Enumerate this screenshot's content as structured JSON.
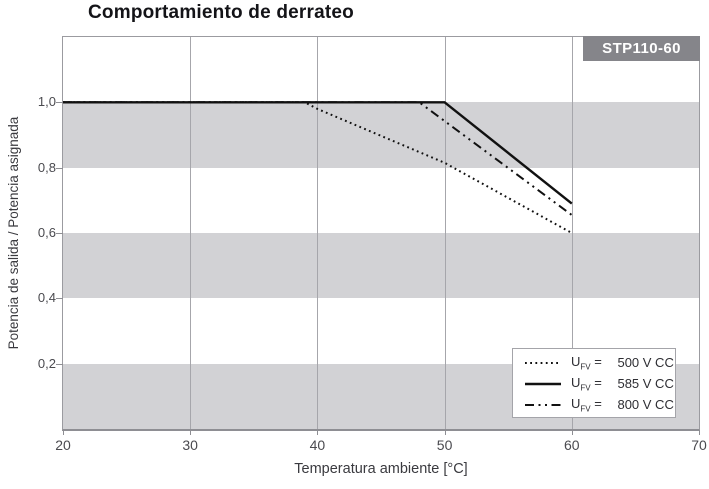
{
  "legend": {
    "items": [
      {
        "u": "U",
        "sub": "FV",
        "eq": "=",
        "value": "500 V CC",
        "style": "dotted"
      },
      {
        "u": "U",
        "sub": "FV",
        "eq": "=",
        "value": "585 V CC",
        "style": "solid"
      },
      {
        "u": "U",
        "sub": "FV",
        "eq": "=",
        "value": "800 V CC",
        "style": "dash-dot-dot"
      }
    ]
  },
  "colors": {
    "band": "#d2d2d5",
    "gridline": "#a6a6ab",
    "frame": "#9b9ba0",
    "axis": "#8e8e93",
    "badge_bg": "#85858a",
    "badge_text": "#ffffff",
    "series_line": "#111111",
    "tick_text": "#4a4a4f",
    "title_text": "#141418"
  },
  "chart_data": {
    "type": "line",
    "title": "Comportamiento de derrateo",
    "badge": "STP110-60",
    "xlabel": "Temperatura ambiente [°C]",
    "ylabel": "Potencia de salida / Potencia asignada",
    "xlim": [
      20,
      70
    ],
    "ylim": [
      0,
      1.2
    ],
    "x_ticks": [
      20,
      30,
      40,
      50,
      60,
      70
    ],
    "y_ticks": [
      0.2,
      0.4,
      0.6,
      0.8,
      1.0
    ],
    "y_tick_labels": [
      "0,2",
      "0,4",
      "0,6",
      "0,8",
      "1,0"
    ],
    "gray_bands": [
      [
        0,
        0.2
      ],
      [
        0.4,
        0.6
      ],
      [
        0.8,
        1.0
      ]
    ],
    "grid": "vertical gridlines at each x tick; alternating gray horizontal bands between y ticks",
    "legend_position": "lower-right",
    "series": [
      {
        "name": "UFV = 500 V CC",
        "style": "dotted",
        "points": [
          [
            20,
            1.0
          ],
          [
            39,
            1.0
          ],
          [
            40,
            0.98
          ],
          [
            50,
            0.815
          ],
          [
            60,
            0.6
          ]
        ]
      },
      {
        "name": "UFV = 585 V CC",
        "style": "solid",
        "points": [
          [
            20,
            1.0
          ],
          [
            50,
            1.0
          ],
          [
            60,
            0.69
          ]
        ]
      },
      {
        "name": "UFV = 800 V CC",
        "style": "dash-dot-dot",
        "points": [
          [
            20,
            1.0
          ],
          [
            48,
            1.0
          ],
          [
            60,
            0.655
          ]
        ]
      }
    ]
  }
}
